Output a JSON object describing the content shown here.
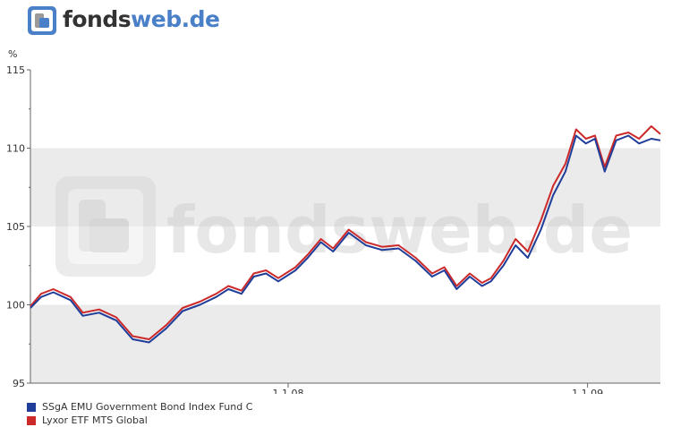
{
  "brand": {
    "logo_text_part1": "fonds",
    "logo_text_part2": "web.de",
    "watermark_text": "fondsweb.de",
    "accent_color": "#4a80c8"
  },
  "chart_data": {
    "type": "line",
    "ylabel": "%",
    "ylim": [
      95,
      115
    ],
    "yticks": [
      95,
      100,
      105,
      110,
      115
    ],
    "xticks": [
      {
        "date": "2008-01-01",
        "label": "1.1.08"
      },
      {
        "date": "2009-01-01",
        "label": "1.1.09"
      }
    ],
    "xlim": [
      "2007-02-20",
      "2009-03-31"
    ],
    "grid": "alternating horizontal bands",
    "legend_position": "bottom-left",
    "series": [
      {
        "name": "SSgA EMU Government Bond Index Fund C",
        "color": "#1f3d99",
        "points": [
          [
            "2007-02-20",
            99.8
          ],
          [
            "2007-03-05",
            100.5
          ],
          [
            "2007-03-20",
            100.8
          ],
          [
            "2007-04-10",
            100.3
          ],
          [
            "2007-04-25",
            99.3
          ],
          [
            "2007-05-15",
            99.5
          ],
          [
            "2007-06-05",
            99.0
          ],
          [
            "2007-06-25",
            97.8
          ],
          [
            "2007-07-15",
            97.6
          ],
          [
            "2007-08-05",
            98.5
          ],
          [
            "2007-08-25",
            99.6
          ],
          [
            "2007-09-15",
            100.0
          ],
          [
            "2007-10-05",
            100.5
          ],
          [
            "2007-10-20",
            101.0
          ],
          [
            "2007-11-05",
            100.7
          ],
          [
            "2007-11-20",
            101.8
          ],
          [
            "2007-12-05",
            102.0
          ],
          [
            "2007-12-20",
            101.5
          ],
          [
            "2008-01-10",
            102.2
          ],
          [
            "2008-01-25",
            103.0
          ],
          [
            "2008-02-10",
            104.0
          ],
          [
            "2008-02-25",
            103.4
          ],
          [
            "2008-03-15",
            104.6
          ],
          [
            "2008-04-05",
            103.8
          ],
          [
            "2008-04-25",
            103.5
          ],
          [
            "2008-05-15",
            103.6
          ],
          [
            "2008-06-05",
            102.8
          ],
          [
            "2008-06-25",
            101.8
          ],
          [
            "2008-07-10",
            102.2
          ],
          [
            "2008-07-25",
            101.0
          ],
          [
            "2008-08-10",
            101.8
          ],
          [
            "2008-08-25",
            101.2
          ],
          [
            "2008-09-05",
            101.5
          ],
          [
            "2008-09-20",
            102.5
          ],
          [
            "2008-10-05",
            103.8
          ],
          [
            "2008-10-20",
            103.0
          ],
          [
            "2008-11-05",
            104.8
          ],
          [
            "2008-11-20",
            107.0
          ],
          [
            "2008-12-05",
            108.5
          ],
          [
            "2008-12-18",
            110.8
          ],
          [
            "2008-12-30",
            110.3
          ],
          [
            "2009-01-10",
            110.6
          ],
          [
            "2009-01-22",
            108.5
          ],
          [
            "2009-02-05",
            110.5
          ],
          [
            "2009-02-20",
            110.8
          ],
          [
            "2009-03-05",
            110.3
          ],
          [
            "2009-03-20",
            110.6
          ],
          [
            "2009-03-31",
            110.5
          ]
        ]
      },
      {
        "name": "Lyxor ETF MTS Global",
        "color": "#cc2a2a",
        "points": [
          [
            "2007-02-20",
            99.9
          ],
          [
            "2007-03-05",
            100.7
          ],
          [
            "2007-03-20",
            101.0
          ],
          [
            "2007-04-10",
            100.5
          ],
          [
            "2007-04-25",
            99.5
          ],
          [
            "2007-05-15",
            99.7
          ],
          [
            "2007-06-05",
            99.2
          ],
          [
            "2007-06-25",
            98.0
          ],
          [
            "2007-07-15",
            97.8
          ],
          [
            "2007-08-05",
            98.7
          ],
          [
            "2007-08-25",
            99.8
          ],
          [
            "2007-09-15",
            100.2
          ],
          [
            "2007-10-05",
            100.7
          ],
          [
            "2007-10-20",
            101.2
          ],
          [
            "2007-11-05",
            100.9
          ],
          [
            "2007-11-20",
            102.0
          ],
          [
            "2007-12-05",
            102.2
          ],
          [
            "2007-12-20",
            101.7
          ],
          [
            "2008-01-10",
            102.4
          ],
          [
            "2008-01-25",
            103.2
          ],
          [
            "2008-02-10",
            104.2
          ],
          [
            "2008-02-25",
            103.6
          ],
          [
            "2008-03-15",
            104.8
          ],
          [
            "2008-04-05",
            104.0
          ],
          [
            "2008-04-25",
            103.7
          ],
          [
            "2008-05-15",
            103.8
          ],
          [
            "2008-06-05",
            103.0
          ],
          [
            "2008-06-25",
            102.0
          ],
          [
            "2008-07-10",
            102.4
          ],
          [
            "2008-07-25",
            101.2
          ],
          [
            "2008-08-10",
            102.0
          ],
          [
            "2008-08-25",
            101.4
          ],
          [
            "2008-09-05",
            101.7
          ],
          [
            "2008-09-20",
            102.8
          ],
          [
            "2008-10-05",
            104.2
          ],
          [
            "2008-10-20",
            103.4
          ],
          [
            "2008-11-05",
            105.4
          ],
          [
            "2008-11-20",
            107.6
          ],
          [
            "2008-12-05",
            109.0
          ],
          [
            "2008-12-18",
            111.2
          ],
          [
            "2008-12-30",
            110.6
          ],
          [
            "2009-01-10",
            110.8
          ],
          [
            "2009-01-22",
            108.8
          ],
          [
            "2009-02-05",
            110.8
          ],
          [
            "2009-02-20",
            111.0
          ],
          [
            "2009-03-05",
            110.6
          ],
          [
            "2009-03-20",
            111.4
          ],
          [
            "2009-03-31",
            110.9
          ]
        ]
      }
    ]
  }
}
